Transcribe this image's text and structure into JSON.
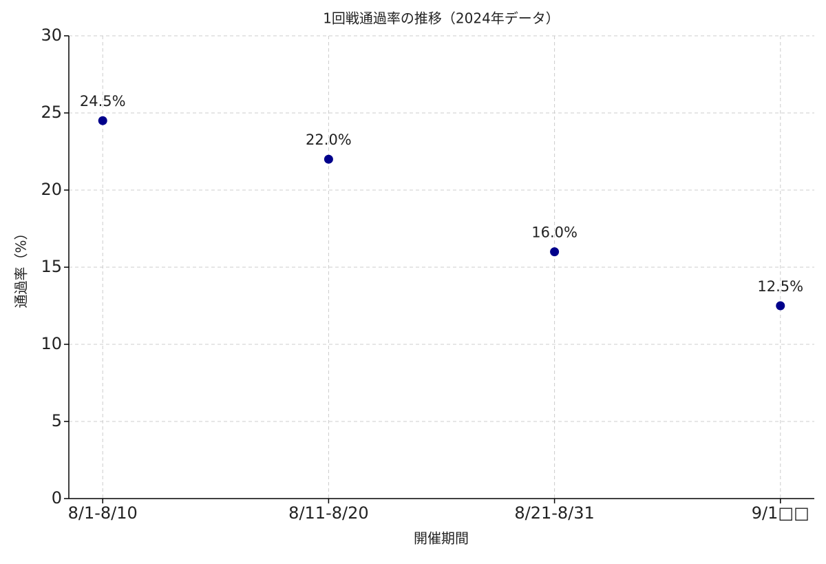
{
  "chart_data": {
    "type": "line",
    "title": "1回戦通過率の推移（2024年データ）",
    "x_label": "開催期間",
    "y_label": "通過率（%）",
    "categories": [
      "8/1-8/10",
      "8/11-8/20",
      "8/21-8/31",
      "9/1□□"
    ],
    "series": [
      {
        "name": "通過率",
        "color": "#00008b",
        "values": [
          24.5,
          22.0,
          16.0,
          12.5
        ],
        "value_labels": [
          "24.5%",
          "22.0%",
          "16.0%",
          "12.5%"
        ]
      }
    ],
    "ylim": [
      0,
      30
    ],
    "yticks": [
      0,
      5,
      10,
      15,
      20,
      25,
      30
    ],
    "grid": true
  }
}
